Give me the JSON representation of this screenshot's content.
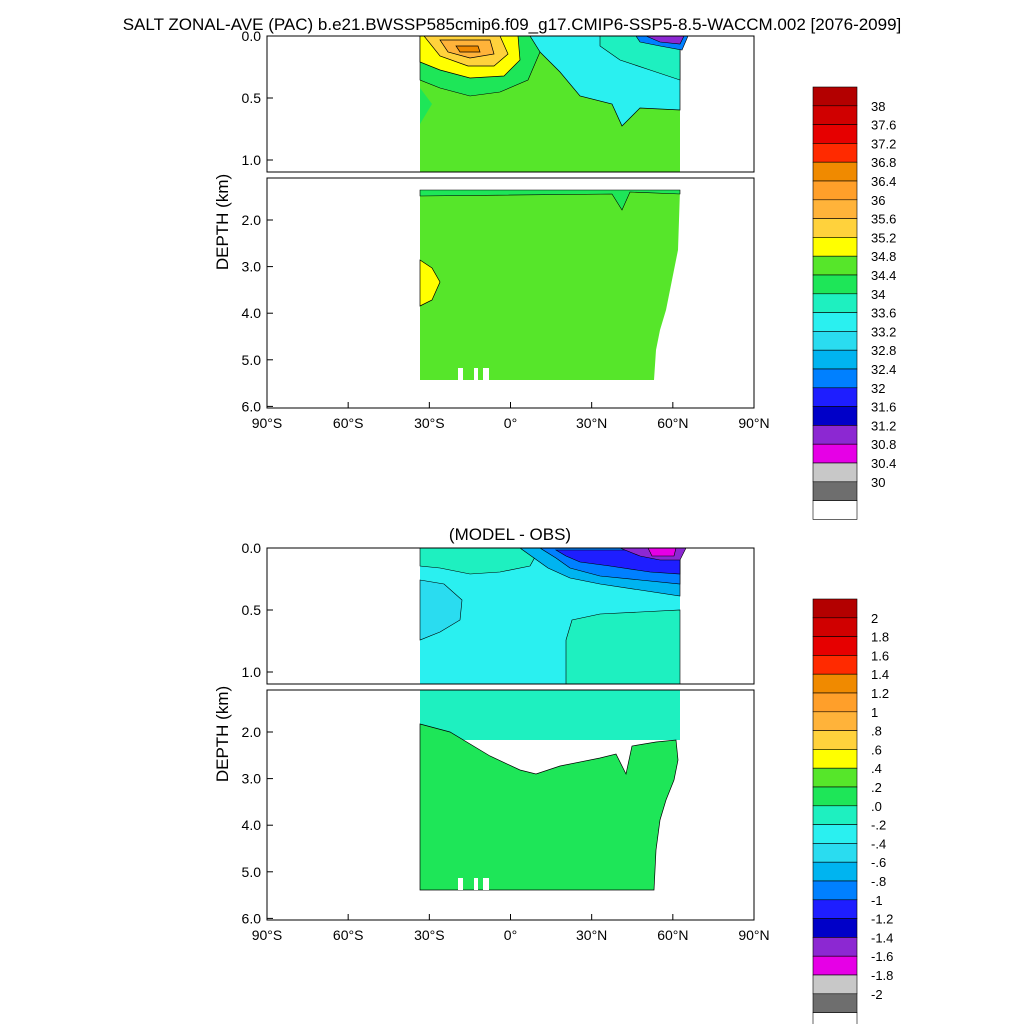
{
  "title": "SALT ZONAL-AVE (PAC) b.e21.BWSSP585cmip6.f09_g17.CMIP6-SSP5-8.5-WACCM.002 [2076-2099]",
  "chart_data": [
    {
      "type": "heatmap",
      "title": "",
      "ylabel": "DEPTH (km)",
      "xlabel": "",
      "x_ticks": [
        "90°S",
        "60°S",
        "30°S",
        "0°",
        "30°N",
        "60°N",
        "90°N"
      ],
      "y_ticks_upper": [
        "0.0",
        "0.5",
        "1.0"
      ],
      "y_ticks_lower": [
        "2.0",
        "3.0",
        "4.0",
        "5.0",
        "6.0"
      ],
      "xlim": [
        -90,
        90
      ],
      "ylim": [
        6.0,
        0.0
      ],
      "colorbar_labels": [
        "38",
        "37.6",
        "37.2",
        "36.8",
        "36.4",
        "36",
        "35.6",
        "35.2",
        "34.8",
        "34.4",
        "34",
        "33.6",
        "33.2",
        "32.8",
        "32.4",
        "32",
        "31.6",
        "31.2",
        "30.8",
        "30.4",
        "30"
      ],
      "colorbar_colors": [
        "#b30000",
        "#d00000",
        "#e60000",
        "#ff2a00",
        "#f08a00",
        "#ff9f2a",
        "#ffb33a",
        "#ffd23c",
        "#ffff00",
        "#56e62a",
        "#1ee658",
        "#1ef0c0",
        "#2af0f0",
        "#2adcf0",
        "#00b4f0",
        "#0080ff",
        "#1e1eff",
        "#0000c8",
        "#8c28d2",
        "#e600e6",
        "#c8c8c8",
        "#6e6e6e",
        "#ffffff"
      ],
      "dominant_value": 34.6,
      "data_extent_lat": [
        -33,
        62
      ]
    },
    {
      "type": "heatmap",
      "title": "(MODEL - OBS)",
      "ylabel": "DEPTH (km)",
      "xlabel": "",
      "x_ticks": [
        "90°S",
        "60°S",
        "30°S",
        "0°",
        "30°N",
        "60°N",
        "90°N"
      ],
      "y_ticks_upper": [
        "0.0",
        "0.5",
        "1.0"
      ],
      "y_ticks_lower": [
        "2.0",
        "3.0",
        "4.0",
        "5.0",
        "6.0"
      ],
      "xlim": [
        -90,
        90
      ],
      "ylim": [
        6.0,
        0.0
      ],
      "colorbar_labels": [
        "2",
        "1.8",
        "1.6",
        "1.4",
        "1.2",
        "1",
        ".8",
        ".6",
        ".4",
        ".2",
        ".0",
        "-.2",
        "-.4",
        "-.6",
        "-.8",
        "-1",
        "-1.2",
        "-1.4",
        "-1.6",
        "-1.8",
        "-2"
      ],
      "colorbar_colors": [
        "#b30000",
        "#d00000",
        "#e60000",
        "#ff2a00",
        "#f08a00",
        "#ff9f2a",
        "#ffb33a",
        "#ffd23c",
        "#ffff00",
        "#56e62a",
        "#1ee658",
        "#1ef0c0",
        "#2af0f0",
        "#2adcf0",
        "#00b4f0",
        "#0080ff",
        "#1e1eff",
        "#0000c8",
        "#8c28d2",
        "#e600e6",
        "#c8c8c8",
        "#6e6e6e",
        "#ffffff"
      ],
      "data_extent_lat": [
        -33,
        62
      ]
    }
  ]
}
